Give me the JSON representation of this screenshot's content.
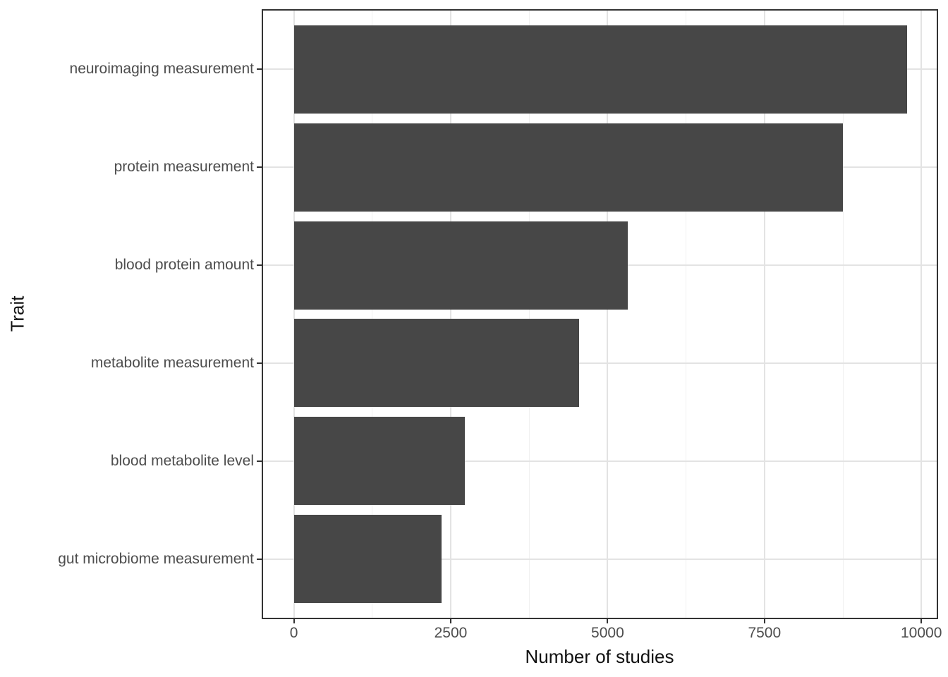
{
  "chart_data": {
    "type": "bar",
    "orientation": "horizontal",
    "title": "",
    "xlabel": "Number of studies",
    "ylabel": "Trait",
    "categories": [
      "neuroimaging measurement",
      "protein measurement",
      "blood protein amount",
      "metabolite measurement",
      "blood metabolite level",
      "gut microbiome measurement"
    ],
    "values": [
      9770,
      8750,
      5320,
      4550,
      2730,
      2350
    ],
    "x_ticks": [
      0,
      2500,
      5000,
      7500,
      10000
    ],
    "x_tick_labels": [
      "0",
      "2500",
      "5000",
      "7500",
      "10000"
    ],
    "x_minor_ticks": [
      1250,
      3750,
      6250,
      8750
    ],
    "xlim": [
      -490,
      10245
    ],
    "grid": "major-and-minor-vertical, major-horizontal",
    "legend": "none"
  },
  "colors": {
    "bar_fill": "#474747",
    "grid_major": "#e3e3e3",
    "grid_minor": "#f1f1f1",
    "panel_border": "#333333",
    "tick_mark": "#333333",
    "tick_label": "#4d4d4d",
    "axis_title": "#111111",
    "background": "#ffffff"
  }
}
